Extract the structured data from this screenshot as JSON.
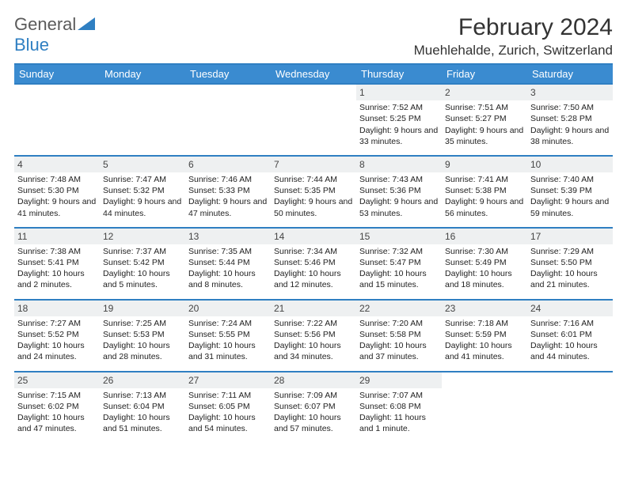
{
  "logo": {
    "text1": "General",
    "text2": "Blue"
  },
  "title": "February 2024",
  "location": "Muehlehalde, Zurich, Switzerland",
  "colors": {
    "header_bg": "#3a8bd0",
    "header_text": "#ffffff",
    "rule": "#2f7fc2",
    "daynum_bg": "#eef0f1",
    "text": "#222222",
    "logo_gray": "#5a5a5a",
    "logo_blue": "#2f7fc2"
  },
  "day_headers": [
    "Sunday",
    "Monday",
    "Tuesday",
    "Wednesday",
    "Thursday",
    "Friday",
    "Saturday"
  ],
  "first_weekday": 4,
  "days_in_month": 29,
  "days": {
    "1": {
      "sunrise": "7:52 AM",
      "sunset": "5:25 PM",
      "daylight": "9 hours and 33 minutes."
    },
    "2": {
      "sunrise": "7:51 AM",
      "sunset": "5:27 PM",
      "daylight": "9 hours and 35 minutes."
    },
    "3": {
      "sunrise": "7:50 AM",
      "sunset": "5:28 PM",
      "daylight": "9 hours and 38 minutes."
    },
    "4": {
      "sunrise": "7:48 AM",
      "sunset": "5:30 PM",
      "daylight": "9 hours and 41 minutes."
    },
    "5": {
      "sunrise": "7:47 AM",
      "sunset": "5:32 PM",
      "daylight": "9 hours and 44 minutes."
    },
    "6": {
      "sunrise": "7:46 AM",
      "sunset": "5:33 PM",
      "daylight": "9 hours and 47 minutes."
    },
    "7": {
      "sunrise": "7:44 AM",
      "sunset": "5:35 PM",
      "daylight": "9 hours and 50 minutes."
    },
    "8": {
      "sunrise": "7:43 AM",
      "sunset": "5:36 PM",
      "daylight": "9 hours and 53 minutes."
    },
    "9": {
      "sunrise": "7:41 AM",
      "sunset": "5:38 PM",
      "daylight": "9 hours and 56 minutes."
    },
    "10": {
      "sunrise": "7:40 AM",
      "sunset": "5:39 PM",
      "daylight": "9 hours and 59 minutes."
    },
    "11": {
      "sunrise": "7:38 AM",
      "sunset": "5:41 PM",
      "daylight": "10 hours and 2 minutes."
    },
    "12": {
      "sunrise": "7:37 AM",
      "sunset": "5:42 PM",
      "daylight": "10 hours and 5 minutes."
    },
    "13": {
      "sunrise": "7:35 AM",
      "sunset": "5:44 PM",
      "daylight": "10 hours and 8 minutes."
    },
    "14": {
      "sunrise": "7:34 AM",
      "sunset": "5:46 PM",
      "daylight": "10 hours and 12 minutes."
    },
    "15": {
      "sunrise": "7:32 AM",
      "sunset": "5:47 PM",
      "daylight": "10 hours and 15 minutes."
    },
    "16": {
      "sunrise": "7:30 AM",
      "sunset": "5:49 PM",
      "daylight": "10 hours and 18 minutes."
    },
    "17": {
      "sunrise": "7:29 AM",
      "sunset": "5:50 PM",
      "daylight": "10 hours and 21 minutes."
    },
    "18": {
      "sunrise": "7:27 AM",
      "sunset": "5:52 PM",
      "daylight": "10 hours and 24 minutes."
    },
    "19": {
      "sunrise": "7:25 AM",
      "sunset": "5:53 PM",
      "daylight": "10 hours and 28 minutes."
    },
    "20": {
      "sunrise": "7:24 AM",
      "sunset": "5:55 PM",
      "daylight": "10 hours and 31 minutes."
    },
    "21": {
      "sunrise": "7:22 AM",
      "sunset": "5:56 PM",
      "daylight": "10 hours and 34 minutes."
    },
    "22": {
      "sunrise": "7:20 AM",
      "sunset": "5:58 PM",
      "daylight": "10 hours and 37 minutes."
    },
    "23": {
      "sunrise": "7:18 AM",
      "sunset": "5:59 PM",
      "daylight": "10 hours and 41 minutes."
    },
    "24": {
      "sunrise": "7:16 AM",
      "sunset": "6:01 PM",
      "daylight": "10 hours and 44 minutes."
    },
    "25": {
      "sunrise": "7:15 AM",
      "sunset": "6:02 PM",
      "daylight": "10 hours and 47 minutes."
    },
    "26": {
      "sunrise": "7:13 AM",
      "sunset": "6:04 PM",
      "daylight": "10 hours and 51 minutes."
    },
    "27": {
      "sunrise": "7:11 AM",
      "sunset": "6:05 PM",
      "daylight": "10 hours and 54 minutes."
    },
    "28": {
      "sunrise": "7:09 AM",
      "sunset": "6:07 PM",
      "daylight": "10 hours and 57 minutes."
    },
    "29": {
      "sunrise": "7:07 AM",
      "sunset": "6:08 PM",
      "daylight": "11 hours and 1 minute."
    }
  },
  "labels": {
    "sunrise": "Sunrise: ",
    "sunset": "Sunset: ",
    "daylight": "Daylight: "
  }
}
